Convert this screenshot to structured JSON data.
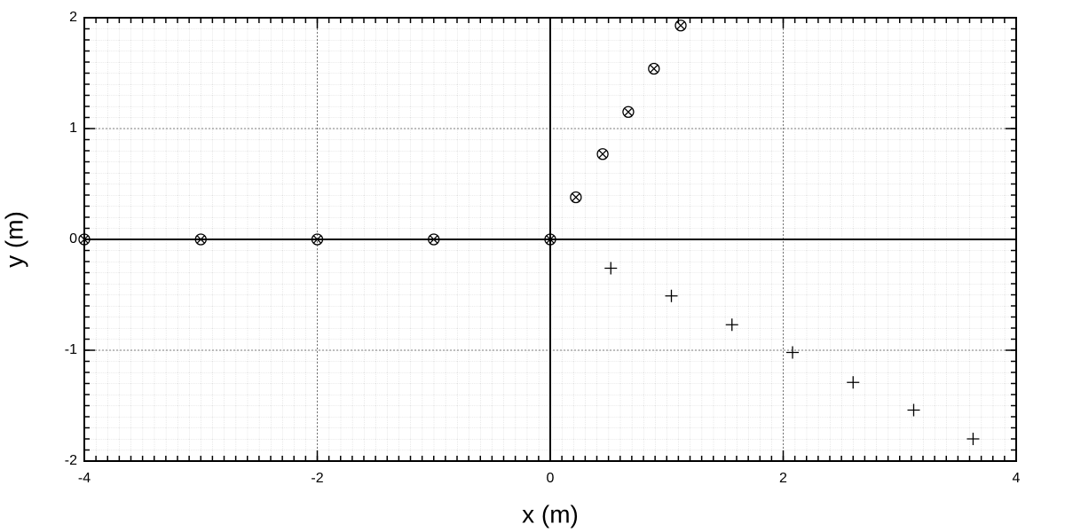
{
  "chart_data": {
    "type": "scatter",
    "x_label": "x (m)",
    "y_label": "y (m)",
    "xlim": [
      -4,
      4
    ],
    "ylim": [
      -2,
      2
    ],
    "xticks": [
      -4,
      -2,
      0,
      2,
      4
    ],
    "yticks": [
      -2,
      -1,
      0,
      1,
      2
    ],
    "grid": true,
    "zero_lines": true,
    "series": [
      {
        "marker": "circle-x",
        "color": "#000000",
        "x": [
          -4,
          -3,
          -2,
          -1,
          0,
          0.22,
          0.45,
          0.67,
          0.89,
          1.12
        ],
        "values": [
          0,
          0,
          0,
          0,
          0,
          0.38,
          0.77,
          1.15,
          1.54,
          1.93
        ]
      },
      {
        "marker": "plus",
        "color": "#000000",
        "x": [
          0.52,
          1.04,
          1.56,
          2.08,
          2.6,
          3.12,
          3.63
        ],
        "values": [
          -0.26,
          -0.51,
          -0.77,
          -1.02,
          -1.29,
          -1.54,
          -1.8
        ]
      }
    ]
  }
}
